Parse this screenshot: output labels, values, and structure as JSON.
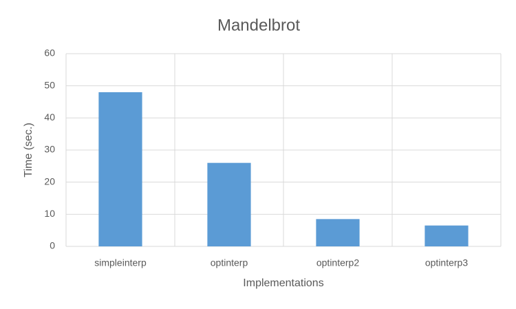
{
  "chart_data": {
    "type": "bar",
    "title": "Mandelbrot",
    "x_label": "Implementations",
    "y_label": "Time (sec.)",
    "categories": [
      "simpleinterp",
      "optinterp",
      "optinterp2",
      "optinterp3"
    ],
    "values": [
      48,
      26,
      8.5,
      6.5
    ],
    "color": "#5b9bd5",
    "ylim": [
      0,
      60
    ],
    "yticks": [
      0,
      10,
      20,
      30,
      40,
      50,
      60
    ],
    "grid": true
  }
}
